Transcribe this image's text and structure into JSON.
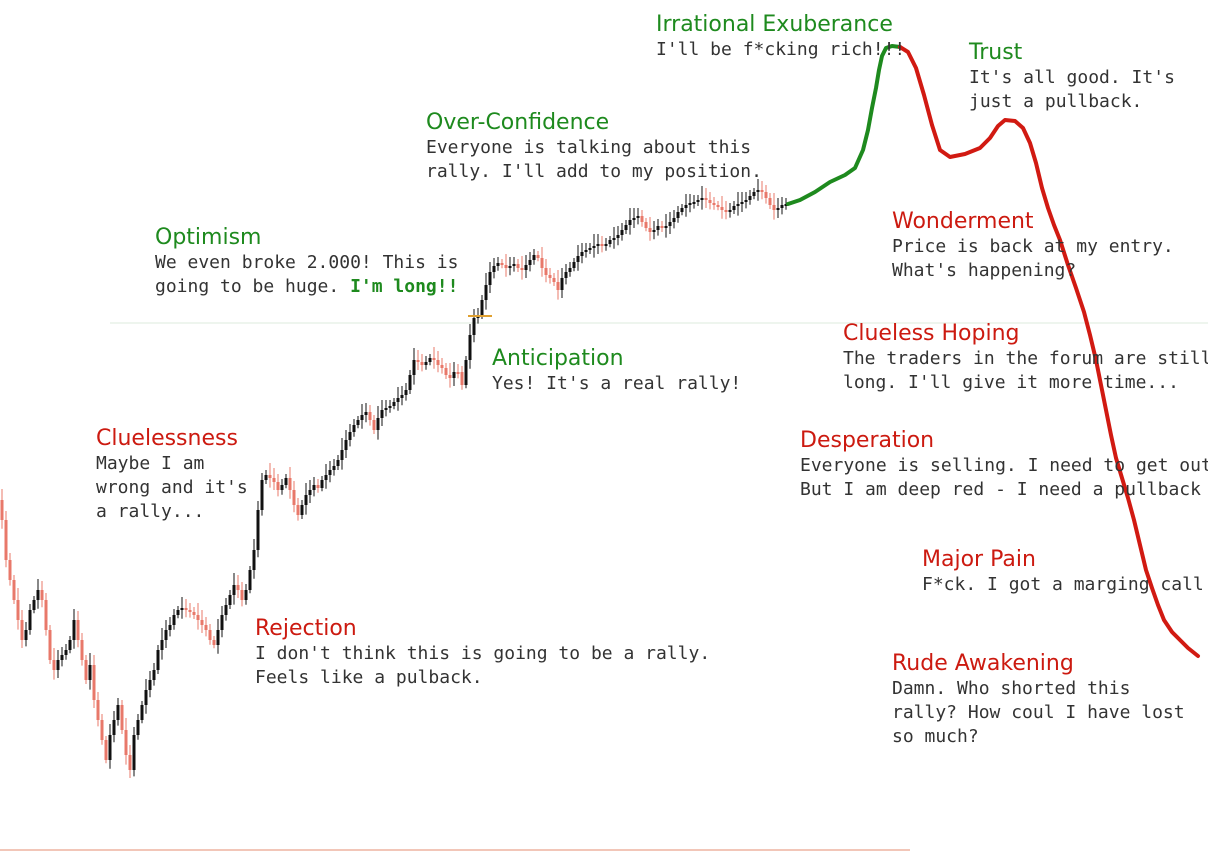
{
  "colors": {
    "bull_candle": "#111111",
    "bear_candle": "#e8786a",
    "euphoria_line": "#1e8a1e",
    "crash_line": "#d11a12",
    "positive_title": "#1e8a1e",
    "negative_title": "#cc1a10",
    "body_text": "#333333",
    "baseline": "#f2c6b8"
  },
  "labels": [
    {
      "id": "irrational-exuberance",
      "sentiment": "positive",
      "title": "Irrational Exuberance",
      "lines": [
        "I'll be f*cking rich!!!"
      ]
    },
    {
      "id": "trust",
      "sentiment": "positive",
      "title": "Trust",
      "lines": [
        "It's all good. It's",
        "just a pullback."
      ]
    },
    {
      "id": "over-confidence",
      "sentiment": "positive",
      "title": "Over-Confidence",
      "lines": [
        "Everyone is talking about this",
        "rally. I'll add to my position."
      ]
    },
    {
      "id": "optimism",
      "sentiment": "positive",
      "title": "Optimism",
      "lines": [
        "We even broke 2.000! This is",
        "going to be huge."
      ],
      "emphasis": "I'm long!!"
    },
    {
      "id": "anticipation",
      "sentiment": "positive",
      "title": "Anticipation",
      "lines": [
        "Yes! It's a real rally!"
      ]
    },
    {
      "id": "cluelessness",
      "sentiment": "negative",
      "title": "Cluelessness",
      "lines": [
        "Maybe I am",
        "wrong and it's",
        "a rally..."
      ]
    },
    {
      "id": "rejection",
      "sentiment": "negative",
      "title": "Rejection",
      "lines": [
        "I don't think this is going to be a rally.",
        "Feels like a pulback."
      ]
    },
    {
      "id": "wonderment",
      "sentiment": "negative",
      "title": "Wonderment",
      "lines": [
        "Price is back at my entry.",
        "What's happening?"
      ]
    },
    {
      "id": "clueless-hoping",
      "sentiment": "negative",
      "title": "Clueless Hoping",
      "lines": [
        "The traders in the forum are still",
        "long. I'll give it more time..."
      ]
    },
    {
      "id": "desperation",
      "sentiment": "negative",
      "title": "Desperation",
      "lines": [
        "Everyone is selling. I need to get out.",
        "But I am deep red - I need a pullback"
      ]
    },
    {
      "id": "major-pain",
      "sentiment": "negative",
      "title": "Major Pain",
      "lines": [
        "F*ck. I got a marging call.."
      ]
    },
    {
      "id": "rude-awakening",
      "sentiment": "negative",
      "title": "Rude Awakening",
      "lines": [
        "Damn. Who shorted this",
        "rally? How coul I have lost",
        "so much?"
      ]
    }
  ],
  "chart_data": {
    "type": "line",
    "ylim": [
      0,
      852
    ],
    "candles_path": [
      [
        0,
        500
      ],
      [
        4,
        520
      ],
      [
        8,
        560
      ],
      [
        12,
        580
      ],
      [
        16,
        600
      ],
      [
        20,
        620
      ],
      [
        24,
        640
      ],
      [
        28,
        630
      ],
      [
        32,
        610
      ],
      [
        36,
        600
      ],
      [
        40,
        590
      ],
      [
        44,
        600
      ],
      [
        48,
        630
      ],
      [
        52,
        660
      ],
      [
        56,
        670
      ],
      [
        60,
        660
      ],
      [
        64,
        655
      ],
      [
        68,
        650
      ],
      [
        72,
        640
      ],
      [
        76,
        620
      ],
      [
        80,
        640
      ],
      [
        84,
        660
      ],
      [
        88,
        680
      ],
      [
        92,
        665
      ],
      [
        96,
        700
      ],
      [
        100,
        720
      ],
      [
        104,
        740
      ],
      [
        108,
        760
      ],
      [
        112,
        735
      ],
      [
        116,
        720
      ],
      [
        120,
        705
      ],
      [
        124,
        730
      ],
      [
        128,
        755
      ],
      [
        132,
        770
      ],
      [
        136,
        735
      ],
      [
        140,
        720
      ],
      [
        144,
        705
      ],
      [
        148,
        690
      ],
      [
        152,
        680
      ],
      [
        156,
        670
      ],
      [
        160,
        650
      ],
      [
        164,
        640
      ],
      [
        168,
        630
      ],
      [
        172,
        625
      ],
      [
        176,
        615
      ],
      [
        180,
        610
      ],
      [
        184,
        608
      ],
      [
        188,
        610
      ],
      [
        192,
        612
      ],
      [
        196,
        615
      ],
      [
        200,
        620
      ],
      [
        204,
        625
      ],
      [
        208,
        630
      ],
      [
        212,
        640
      ],
      [
        216,
        645
      ],
      [
        220,
        630
      ],
      [
        224,
        615
      ],
      [
        228,
        605
      ],
      [
        232,
        595
      ],
      [
        236,
        585
      ],
      [
        240,
        590
      ],
      [
        244,
        600
      ],
      [
        248,
        590
      ],
      [
        252,
        570
      ],
      [
        256,
        550
      ],
      [
        260,
        510
      ],
      [
        264,
        480
      ],
      [
        268,
        475
      ],
      [
        272,
        478
      ],
      [
        276,
        482
      ],
      [
        280,
        490
      ],
      [
        284,
        485
      ],
      [
        288,
        478
      ],
      [
        292,
        490
      ],
      [
        296,
        505
      ],
      [
        300,
        515
      ],
      [
        304,
        505
      ],
      [
        308,
        495
      ],
      [
        312,
        490
      ],
      [
        316,
        485
      ],
      [
        320,
        488
      ],
      [
        324,
        480
      ],
      [
        328,
        475
      ],
      [
        332,
        470
      ],
      [
        336,
        466
      ],
      [
        340,
        460
      ],
      [
        344,
        450
      ],
      [
        348,
        440
      ],
      [
        352,
        432
      ],
      [
        356,
        425
      ],
      [
        360,
        420
      ],
      [
        364,
        415
      ],
      [
        368,
        412
      ],
      [
        372,
        420
      ],
      [
        376,
        430
      ],
      [
        380,
        418
      ],
      [
        384,
        410
      ],
      [
        388,
        408
      ],
      [
        392,
        406
      ],
      [
        396,
        402
      ],
      [
        400,
        398
      ],
      [
        404,
        395
      ],
      [
        408,
        390
      ],
      [
        412,
        375
      ],
      [
        416,
        360
      ],
      [
        420,
        362
      ],
      [
        424,
        365
      ],
      [
        428,
        362
      ],
      [
        432,
        358
      ],
      [
        436,
        360
      ],
      [
        440,
        365
      ],
      [
        444,
        368
      ],
      [
        448,
        375
      ],
      [
        452,
        378
      ],
      [
        456,
        372
      ],
      [
        460,
        372
      ],
      [
        464,
        385
      ],
      [
        468,
        360
      ],
      [
        472,
        335
      ],
      [
        476,
        318
      ],
      [
        480,
        315
      ],
      [
        484,
        300
      ],
      [
        488,
        285
      ],
      [
        492,
        272
      ],
      [
        496,
        266
      ],
      [
        500,
        263
      ],
      [
        504,
        265
      ],
      [
        508,
        268
      ],
      [
        512,
        266
      ],
      [
        516,
        264
      ],
      [
        520,
        268
      ],
      [
        524,
        270
      ],
      [
        528,
        265
      ],
      [
        532,
        260
      ],
      [
        536,
        255
      ],
      [
        540,
        258
      ],
      [
        544,
        268
      ],
      [
        548,
        275
      ],
      [
        552,
        278
      ],
      [
        556,
        282
      ],
      [
        560,
        290
      ],
      [
        564,
        278
      ],
      [
        568,
        272
      ],
      [
        572,
        268
      ],
      [
        576,
        262
      ],
      [
        580,
        256
      ],
      [
        584,
        252
      ],
      [
        588,
        250
      ],
      [
        592,
        248
      ],
      [
        596,
        246
      ],
      [
        600,
        244
      ],
      [
        604,
        246
      ],
      [
        608,
        244
      ],
      [
        612,
        240
      ],
      [
        616,
        238
      ],
      [
        620,
        235
      ],
      [
        624,
        230
      ],
      [
        628,
        225
      ],
      [
        632,
        220
      ],
      [
        636,
        218
      ],
      [
        640,
        216
      ],
      [
        644,
        222
      ],
      [
        648,
        228
      ],
      [
        652,
        232
      ],
      [
        656,
        230
      ],
      [
        660,
        226
      ],
      [
        664,
        228
      ],
      [
        668,
        226
      ],
      [
        672,
        222
      ],
      [
        676,
        218
      ],
      [
        680,
        212
      ],
      [
        684,
        208
      ],
      [
        688,
        205
      ],
      [
        692,
        203
      ],
      [
        696,
        202
      ],
      [
        700,
        200
      ],
      [
        704,
        198
      ],
      [
        708,
        200
      ],
      [
        712,
        203
      ],
      [
        716,
        205
      ],
      [
        720,
        207
      ],
      [
        724,
        210
      ],
      [
        728,
        212
      ],
      [
        732,
        210
      ],
      [
        736,
        206
      ],
      [
        740,
        204
      ],
      [
        744,
        202
      ],
      [
        748,
        200
      ],
      [
        752,
        196
      ],
      [
        756,
        192
      ],
      [
        760,
        190
      ],
      [
        764,
        192
      ],
      [
        768,
        198
      ],
      [
        772,
        205
      ],
      [
        776,
        210
      ],
      [
        780,
        208
      ],
      [
        784,
        205
      ],
      [
        788,
        204
      ]
    ],
    "series": [
      {
        "name": "",
        "color": "#1e8a1e",
        "points": [
          [
            788,
            204
          ],
          [
            800,
            200
          ],
          [
            815,
            192
          ],
          [
            830,
            182
          ],
          [
            845,
            175
          ],
          [
            855,
            168
          ],
          [
            863,
            150
          ],
          [
            868,
            130
          ],
          [
            872,
            108
          ],
          [
            876,
            88
          ],
          [
            879,
            70
          ],
          [
            882,
            56
          ],
          [
            886,
            48
          ],
          [
            892,
            46
          ],
          [
            900,
            47
          ]
        ]
      },
      {
        "name": "",
        "color": "#d11a12",
        "points": [
          [
            900,
            47
          ],
          [
            908,
            52
          ],
          [
            916,
            68
          ],
          [
            924,
            95
          ],
          [
            932,
            125
          ],
          [
            940,
            150
          ],
          [
            950,
            157
          ],
          [
            965,
            154
          ],
          [
            980,
            148
          ],
          [
            990,
            138
          ],
          [
            998,
            126
          ],
          [
            1005,
            120
          ],
          [
            1015,
            121
          ],
          [
            1023,
            128
          ],
          [
            1030,
            143
          ],
          [
            1036,
            163
          ],
          [
            1042,
            188
          ],
          [
            1048,
            208
          ],
          [
            1054,
            225
          ],
          [
            1060,
            240
          ],
          [
            1068,
            265
          ],
          [
            1076,
            288
          ],
          [
            1084,
            312
          ],
          [
            1090,
            335
          ],
          [
            1096,
            360
          ],
          [
            1101,
            385
          ],
          [
            1106,
            410
          ],
          [
            1111,
            435
          ],
          [
            1116,
            458
          ],
          [
            1122,
            478
          ],
          [
            1128,
            498
          ],
          [
            1134,
            520
          ],
          [
            1140,
            545
          ],
          [
            1146,
            570
          ],
          [
            1152,
            588
          ],
          [
            1158,
            605
          ],
          [
            1164,
            620
          ],
          [
            1172,
            632
          ],
          [
            1180,
            640
          ],
          [
            1188,
            648
          ],
          [
            1198,
            656
          ]
        ]
      }
    ]
  }
}
